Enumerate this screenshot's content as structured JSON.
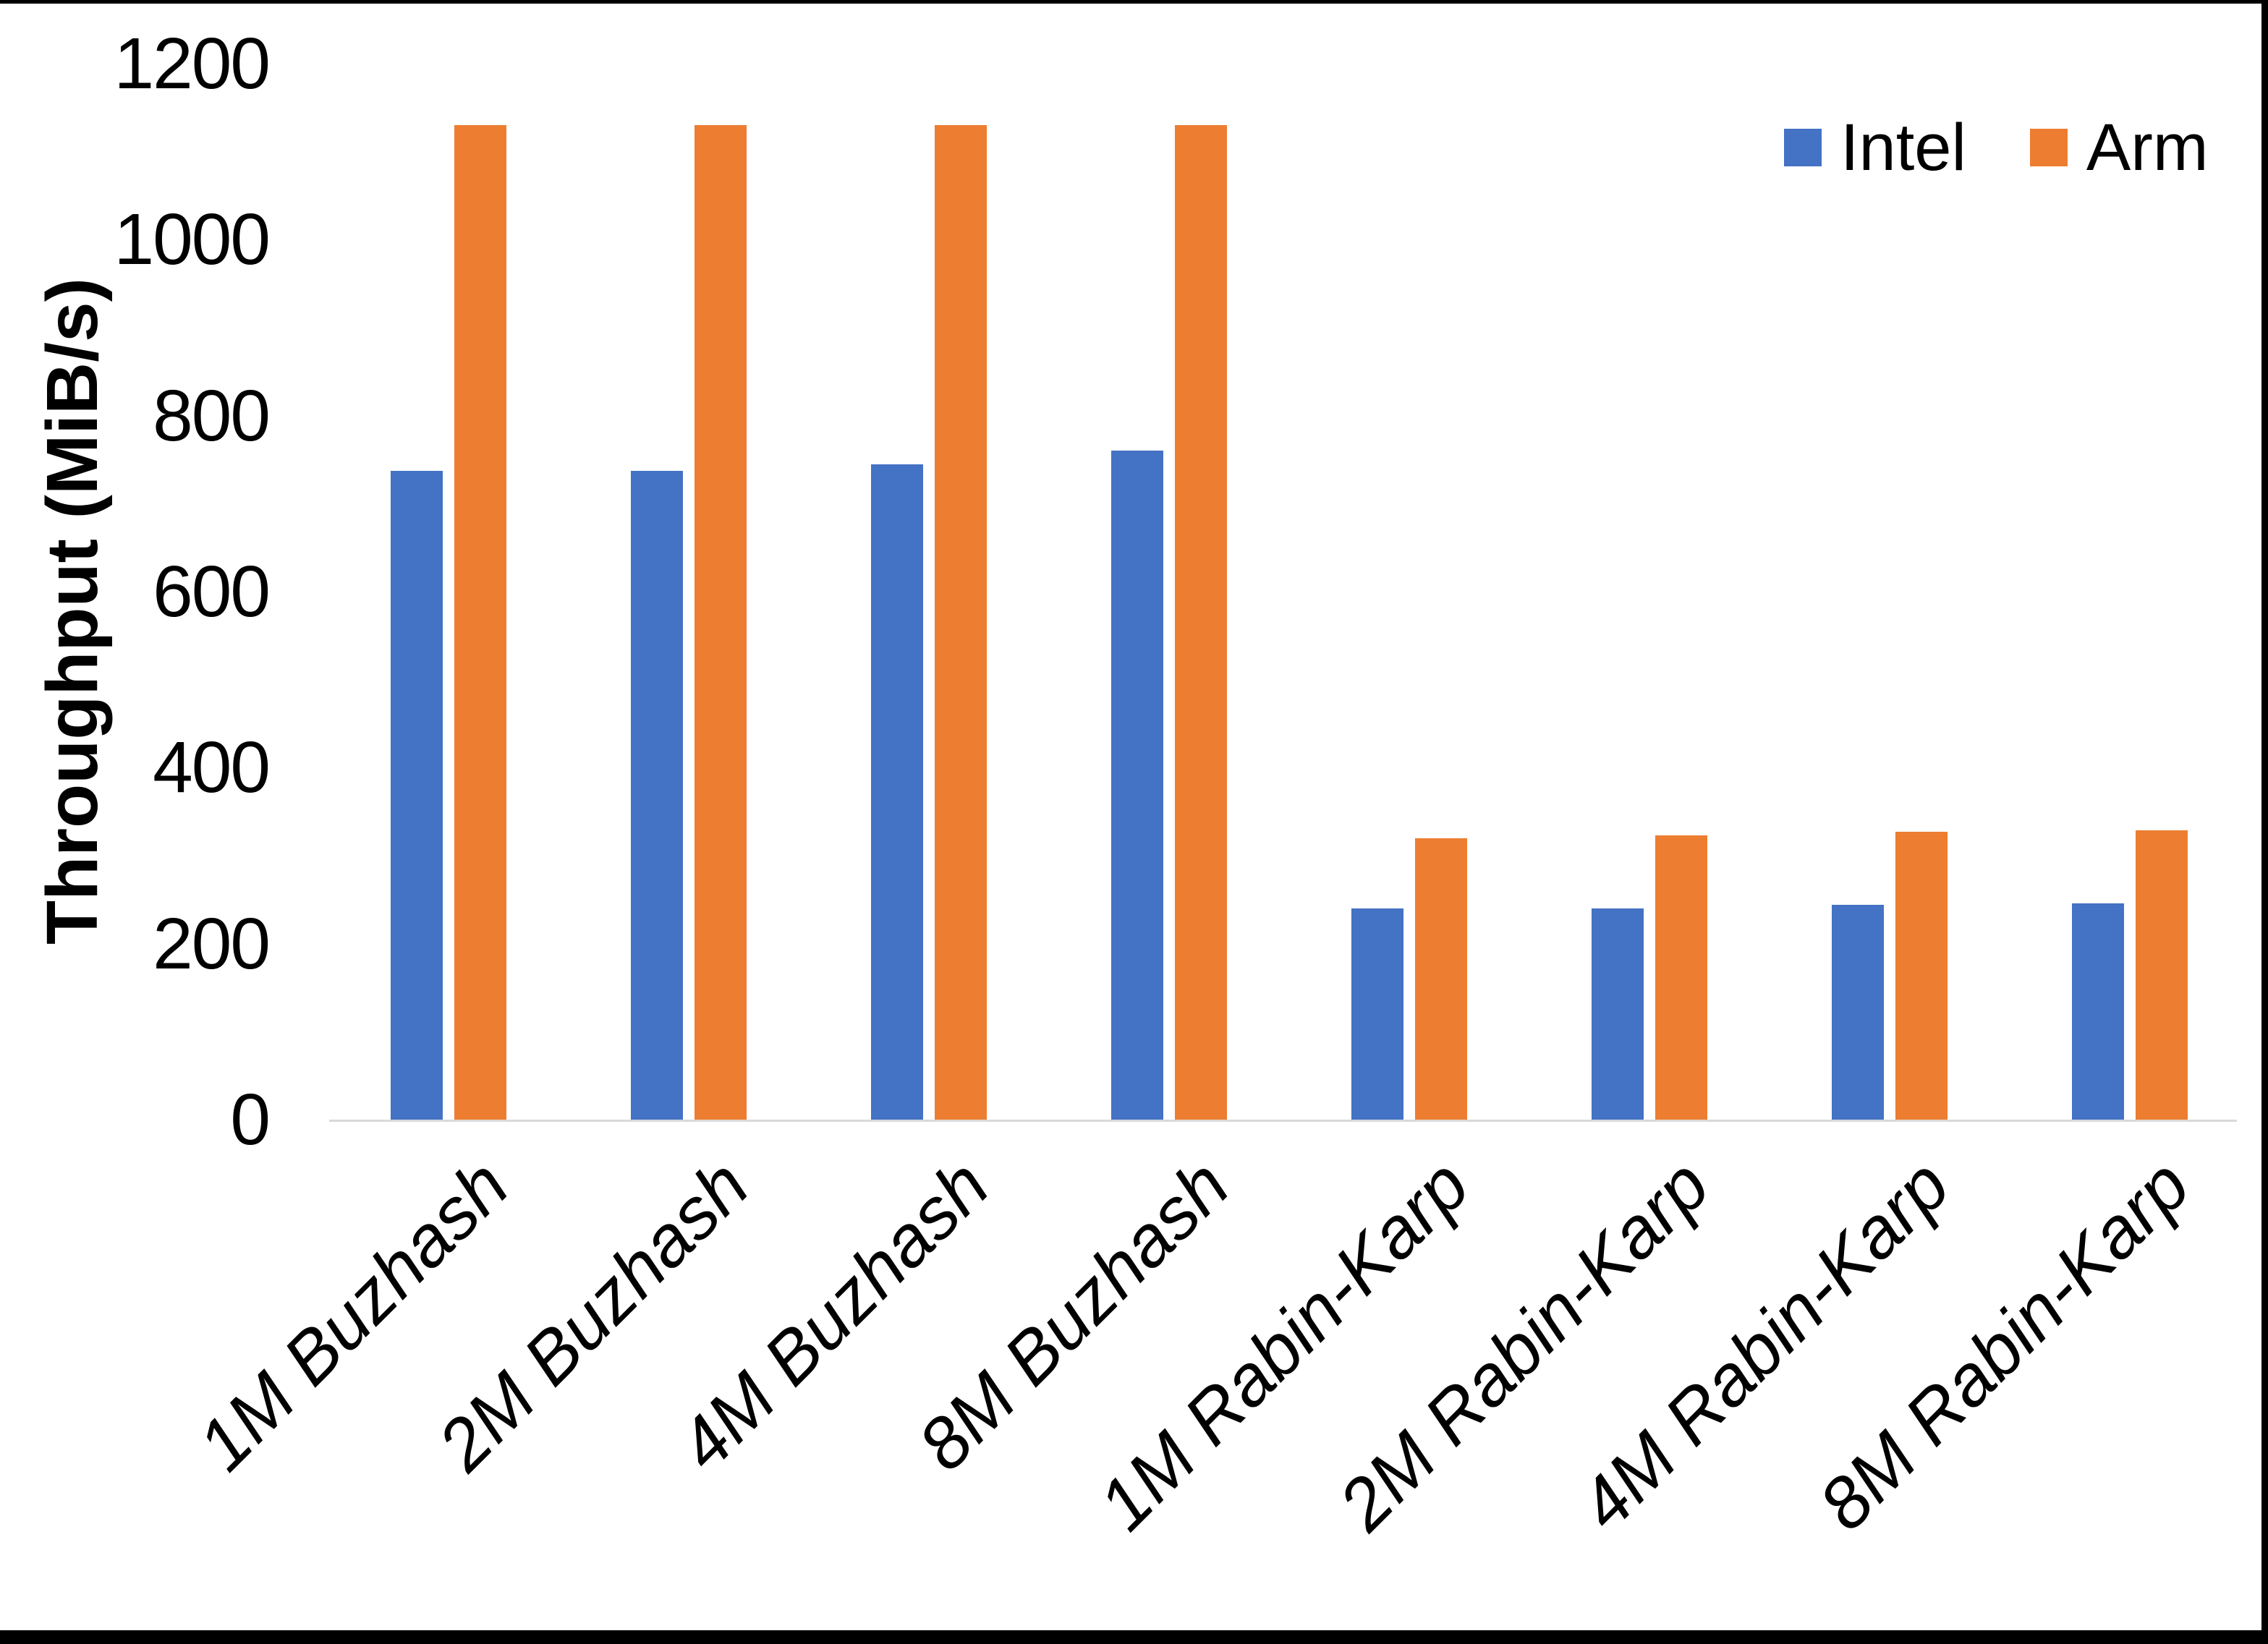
{
  "chart_data": {
    "type": "bar",
    "title": "",
    "ylabel": "Throughput (MiB/s)",
    "xlabel": "",
    "categories": [
      "1M Buzhash",
      "2M Buzhash",
      "4M Buzhash",
      "8M Buzhash",
      "1M Rabin-Karp",
      "2M Rabin-Karp",
      "4M Rabin-Karp",
      "8M Rabin-Karp"
    ],
    "series": [
      {
        "name": "Intel",
        "color": "#4472C4",
        "values": [
          737,
          737,
          745,
          760,
          240,
          240,
          244,
          246
        ]
      },
      {
        "name": "Arm",
        "color": "#ED7D31",
        "values": [
          1130,
          1130,
          1130,
          1130,
          320,
          323,
          327,
          329
        ]
      }
    ],
    "yticks": [
      0,
      200,
      400,
      600,
      800,
      1000,
      1200
    ],
    "ylim": [
      0,
      1200
    ],
    "grid": false,
    "legend_position": "top-right",
    "axis_line_color": "#D9D9D9",
    "frame_color": "#000000"
  }
}
